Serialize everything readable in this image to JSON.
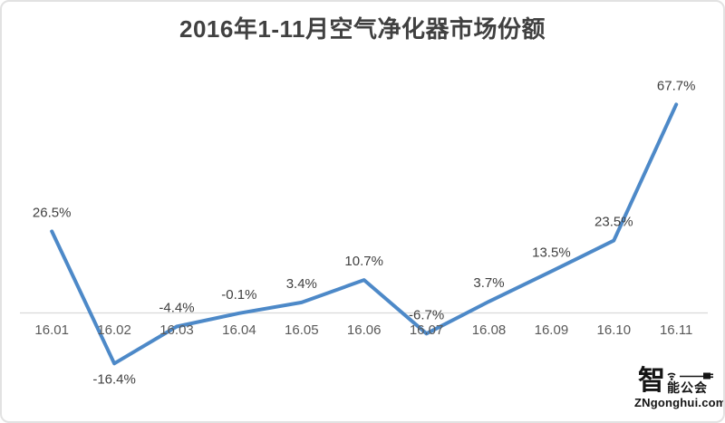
{
  "chart_data": {
    "type": "line",
    "title": "2016年1-11月空气净化器市场份额",
    "categories": [
      "16.01",
      "16.02",
      "16.03",
      "16.04",
      "16.05",
      "16.06",
      "16.07",
      "16.08",
      "16.09",
      "16.10",
      "16.11"
    ],
    "values": [
      26.5,
      -16.4,
      -4.4,
      -0.1,
      3.4,
      10.7,
      -6.7,
      3.7,
      13.5,
      23.5,
      67.7
    ],
    "labels": [
      "26.5%",
      "-16.4%",
      "-4.4%",
      "-0.1%",
      "3.4%",
      "10.7%",
      "-6.7%",
      "3.7%",
      "13.5%",
      "23.5%",
      "67.7%"
    ],
    "label_position": [
      "above",
      "below",
      "above",
      "above",
      "above",
      "above",
      "above",
      "above",
      "above",
      "above",
      "above"
    ],
    "xlabel": "",
    "ylabel": "",
    "ylim": [
      -25,
      80
    ],
    "grid": false,
    "legend": false,
    "colors": {
      "line": "#4d89c8",
      "axis": "#d9d9d9",
      "title": "#404040",
      "data_label": "#404040",
      "x_label": "#595959"
    }
  },
  "watermark": {
    "zhi": "智",
    "rest": "能公会",
    "url": "ZNgonghui.com"
  }
}
